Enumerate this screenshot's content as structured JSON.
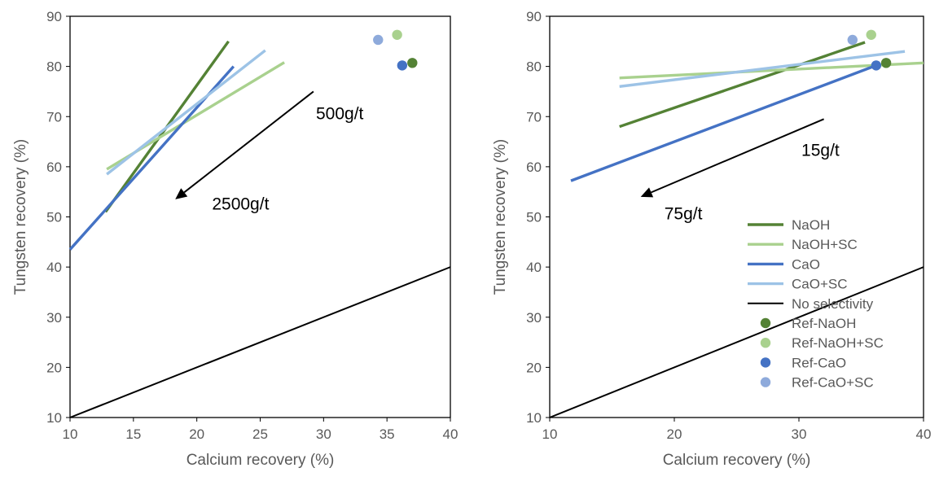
{
  "chart_data": [
    {
      "type": "line",
      "title": "",
      "xlabel": "Calcium recovery (%)",
      "ylabel": "Tungsten recovery (%)",
      "xlim": [
        10,
        40
      ],
      "ylim": [
        10,
        90
      ],
      "xticks": [
        "10",
        "15",
        "20",
        "25",
        "30",
        "35",
        "40"
      ],
      "yticks": [
        "10",
        "20",
        "30",
        "40",
        "50",
        "60",
        "70",
        "80",
        "90"
      ],
      "grid": false,
      "colors": {
        "NaOH": "#548235",
        "NaOH+SC": "#a9d18e",
        "CaO": "#4472c4",
        "CaO+SC": "#9dc3e6",
        "No selectivity": "#000000"
      },
      "series": [
        {
          "name": "NaOH",
          "x": [
            12.8,
            22.5
          ],
          "y": [
            51.0,
            85.0
          ]
        },
        {
          "name": "NaOH+SC",
          "x": [
            12.9,
            26.9
          ],
          "y": [
            59.5,
            80.8
          ]
        },
        {
          "name": "CaO",
          "x": [
            10.0,
            22.9
          ],
          "y": [
            43.5,
            80.0
          ]
        },
        {
          "name": "CaO+SC",
          "x": [
            12.9,
            25.4
          ],
          "y": [
            58.5,
            83.2
          ]
        },
        {
          "name": "No selectivity",
          "x": [
            10,
            40
          ],
          "y": [
            10,
            40
          ]
        }
      ],
      "points": [
        {
          "name": "Ref-NaOH",
          "x": 37.0,
          "y": 80.7,
          "color": "#548235"
        },
        {
          "name": "Ref-NaOH+SC",
          "x": 35.8,
          "y": 86.3,
          "color": "#a9d18e"
        },
        {
          "name": "Ref-CaO",
          "x": 36.2,
          "y": 80.2,
          "color": "#4472c4"
        },
        {
          "name": "Ref-CaO+SC",
          "x": 34.3,
          "y": 85.3,
          "color": "#8eaadb"
        }
      ],
      "annotations": [
        {
          "text": "500g/t",
          "x": 29.4,
          "y": 69.5
        },
        {
          "text": "2500g/t",
          "x": 21.2,
          "y": 51.5
        }
      ],
      "arrow": {
        "from": [
          29.2,
          75.0
        ],
        "to": [
          18.3,
          53.5
        ]
      },
      "legend": "none"
    },
    {
      "type": "line",
      "title": "",
      "xlabel": "Calcium recovery (%)",
      "ylabel": "Tungsten recovery (%)",
      "xlim": [
        10,
        40
      ],
      "ylim": [
        10,
        90
      ],
      "xticks": [
        "10",
        "20",
        "30",
        "40"
      ],
      "yticks": [
        "10",
        "20",
        "30",
        "40",
        "50",
        "60",
        "70",
        "80",
        "90"
      ],
      "grid": false,
      "colors": {
        "NaOH": "#548235",
        "NaOH+SC": "#a9d18e",
        "CaO": "#4472c4",
        "CaO+SC": "#9dc3e6",
        "No selectivity": "#000000"
      },
      "series": [
        {
          "name": "NaOH",
          "x": [
            15.6,
            35.3
          ],
          "y": [
            68.0,
            84.8
          ]
        },
        {
          "name": "NaOH+SC",
          "x": [
            15.6,
            40.0
          ],
          "y": [
            77.7,
            80.7
          ]
        },
        {
          "name": "CaO",
          "x": [
            11.7,
            36.2
          ],
          "y": [
            57.2,
            80.2
          ]
        },
        {
          "name": "CaO+SC",
          "x": [
            15.6,
            38.5
          ],
          "y": [
            76.0,
            83.0
          ]
        },
        {
          "name": "No selectivity",
          "x": [
            10,
            40
          ],
          "y": [
            10,
            40
          ]
        }
      ],
      "points": [
        {
          "name": "Ref-NaOH",
          "x": 37.0,
          "y": 80.7,
          "color": "#548235"
        },
        {
          "name": "Ref-NaOH+SC",
          "x": 35.8,
          "y": 86.3,
          "color": "#a9d18e"
        },
        {
          "name": "Ref-CaO",
          "x": 36.2,
          "y": 80.2,
          "color": "#4472c4"
        },
        {
          "name": "Ref-CaO+SC",
          "x": 34.3,
          "y": 85.3,
          "color": "#8eaadb"
        }
      ],
      "annotations": [
        {
          "text": "15g/t",
          "x": 30.2,
          "y": 62.2
        },
        {
          "text": "75g/t",
          "x": 19.2,
          "y": 49.5
        }
      ],
      "arrow": {
        "from": [
          32.0,
          69.5
        ],
        "to": [
          17.3,
          54.0
        ]
      },
      "legend": "right"
    }
  ]
}
